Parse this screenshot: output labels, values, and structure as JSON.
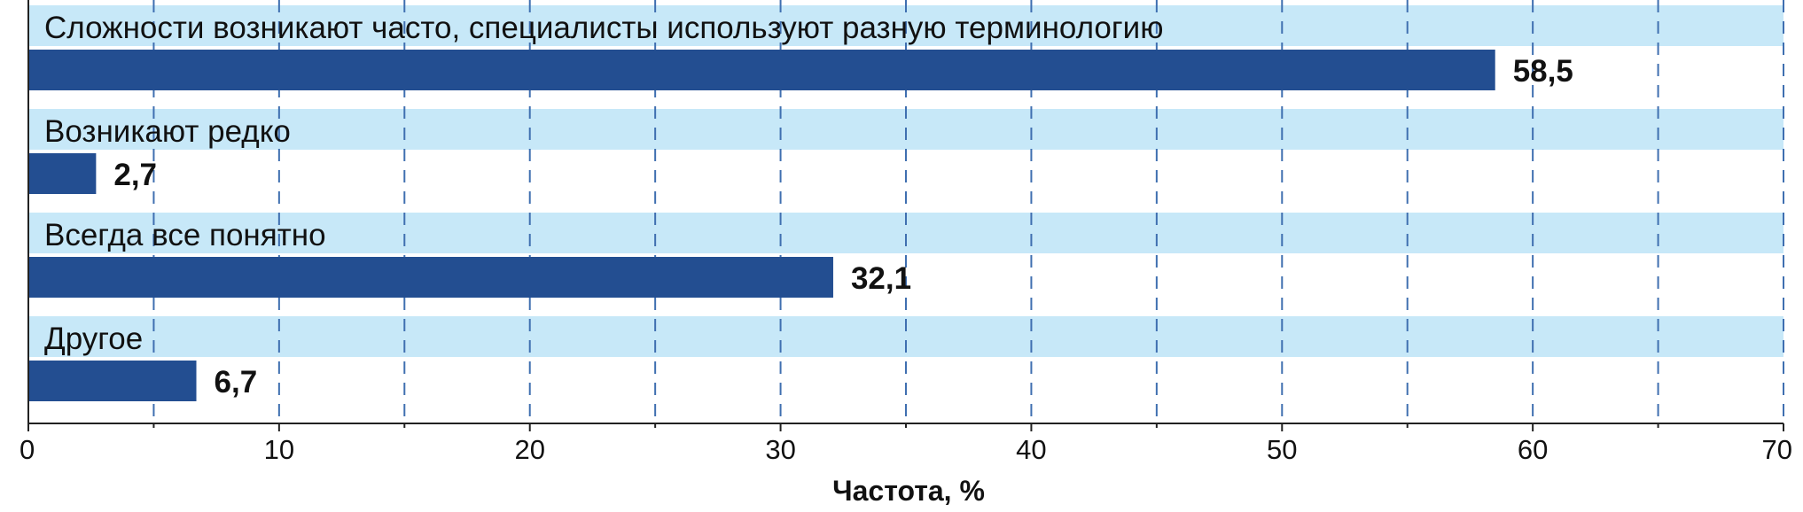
{
  "chart_data": {
    "type": "bar",
    "orientation": "horizontal",
    "categories": [
      "Сложности возникают часто, специалисты используют разную терминологию",
      "Возникают редко",
      "Всегда все понятно",
      "Другое"
    ],
    "values": [
      58.5,
      2.7,
      32.1,
      6.7
    ],
    "value_labels": [
      "58,5",
      "2,7",
      "32,1",
      "6,7"
    ],
    "xlabel": "Частота, %",
    "xlim": [
      0,
      70
    ],
    "xticks": [
      0,
      10,
      20,
      30,
      40,
      50,
      60,
      70
    ],
    "minor_grid_step": 5,
    "grid": "vertical dashed",
    "colors": {
      "bar": "#234e91",
      "label_band": "#c7e8f8",
      "grid": "#3f6fb0",
      "axis": "#222222"
    }
  }
}
